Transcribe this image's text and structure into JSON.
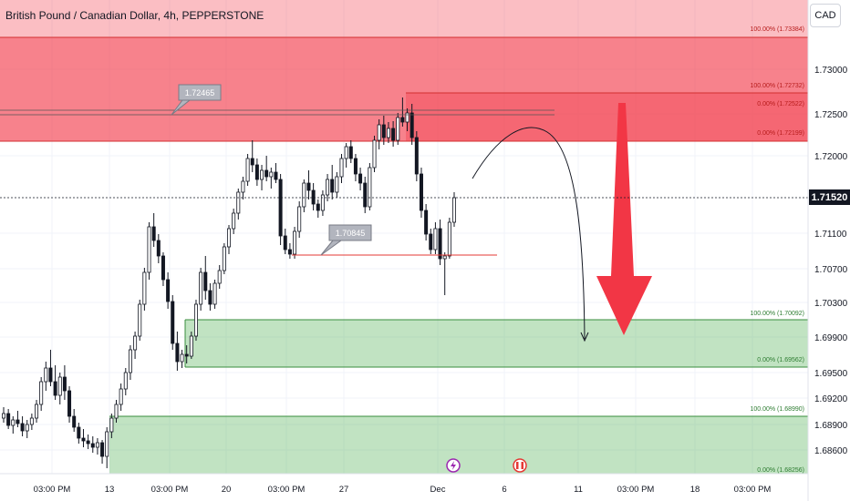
{
  "header": {
    "title": "British Pound / Canadian Dollar, 4h, PEPPERSTONE",
    "currency": "CAD"
  },
  "colors": {
    "up": "#ffffff",
    "down": "#131722",
    "supply_zone": "#f23645",
    "demand_zone": "#4caf50",
    "arrow": "#f23645"
  },
  "chart_data": {
    "type": "candlestick",
    "symbol": "GBPCAD",
    "timeframe": "4h",
    "price_axis": {
      "ticks": [
        "1.73000",
        "1.72500",
        "1.72000",
        "1.71100",
        "1.70700",
        "1.70300",
        "1.69900",
        "1.69500",
        "1.69200",
        "1.68900",
        "1.68600"
      ],
      "last_price": "1.71520"
    },
    "time_axis": {
      "ticks": [
        "03:00 PM",
        "13",
        "03:00 PM",
        "20",
        "03:00 PM",
        "27",
        "Dec",
        "6",
        "11",
        "03:00 PM",
        "18",
        "03:00 PM"
      ]
    },
    "zones": [
      {
        "name": "supply-upper",
        "top_label": "100.00% (1.73384)",
        "top": 1.73384,
        "bottom": 1.72732
      },
      {
        "name": "supply-lower",
        "top_label": "100.00% (1.72732)",
        "mid_label": "0.00% (1.72522)",
        "bottom_label": "0.00% (1.72199)",
        "top": 1.72732,
        "bottom": 1.72199
      },
      {
        "name": "demand-upper",
        "top_label": "100.00% (1.70092)",
        "bottom_label": "0.00% (1.69562)",
        "top": 1.70092,
        "bottom": 1.69562
      },
      {
        "name": "demand-lower",
        "top_label": "100.00% (1.68990)",
        "bottom_label": "0.00% (1.68256)",
        "top": 1.6899,
        "bottom": 1.68256
      }
    ],
    "callouts": [
      {
        "name": "high-callout",
        "label": "1.72465",
        "price": 1.72465
      },
      {
        "name": "low-callout",
        "label": "1.70845",
        "price": 1.70845
      }
    ],
    "event_icons": [
      "lightning-icon",
      "canada-flag-icon"
    ],
    "candles": [
      [
        1.691,
        1.6922,
        1.6905,
        1.6915
      ],
      [
        1.6915,
        1.692,
        1.6898,
        1.6902
      ],
      [
        1.6902,
        1.6912,
        1.6893,
        1.6908
      ],
      [
        1.6908,
        1.6918,
        1.69,
        1.6904
      ],
      [
        1.6904,
        1.6912,
        1.689,
        1.6896
      ],
      [
        1.6896,
        1.6908,
        1.6888,
        1.6903
      ],
      [
        1.6903,
        1.6915,
        1.6897,
        1.691
      ],
      [
        1.691,
        1.693,
        1.6905,
        1.6925
      ],
      [
        1.6925,
        1.6955,
        1.6918,
        1.695
      ],
      [
        1.695,
        1.6972,
        1.694,
        1.6965
      ],
      [
        1.6965,
        1.6985,
        1.6945,
        1.695
      ],
      [
        1.695,
        1.6968,
        1.693,
        1.6935
      ],
      [
        1.6935,
        1.696,
        1.6925,
        1.6955
      ],
      [
        1.6955,
        1.6968,
        1.693,
        1.694
      ],
      [
        1.694,
        1.6945,
        1.6905,
        1.6912
      ],
      [
        1.6912,
        1.692,
        1.6895,
        1.69
      ],
      [
        1.69,
        1.6905,
        1.6882,
        1.6888
      ],
      [
        1.6888,
        1.6898,
        1.6878,
        1.6885
      ],
      [
        1.6885,
        1.6892,
        1.6876,
        1.6882
      ],
      [
        1.6882,
        1.689,
        1.6872,
        1.6878
      ],
      [
        1.6878,
        1.6888,
        1.687,
        1.6883
      ],
      [
        1.6883,
        1.6886,
        1.686,
        1.6868
      ],
      [
        1.6868,
        1.69,
        1.6855,
        1.6895
      ],
      [
        1.6895,
        1.6915,
        1.6888,
        1.691
      ],
      [
        1.691,
        1.693,
        1.6905,
        1.6925
      ],
      [
        1.6925,
        1.6948,
        1.6918,
        1.6942
      ],
      [
        1.6942,
        1.6965,
        1.6935,
        1.696
      ],
      [
        1.696,
        1.699,
        1.6952,
        1.6985
      ],
      [
        1.6985,
        1.7005,
        1.6975,
        1.7
      ],
      [
        1.7,
        1.704,
        1.6995,
        1.7035
      ],
      [
        1.7035,
        1.7075,
        1.7028,
        1.707
      ],
      [
        1.707,
        1.7125,
        1.7062,
        1.712
      ],
      [
        1.712,
        1.7135,
        1.7098,
        1.7105
      ],
      [
        1.7105,
        1.7112,
        1.708,
        1.7088
      ],
      [
        1.7088,
        1.7092,
        1.7055,
        1.7062
      ],
      [
        1.7062,
        1.707,
        1.703,
        1.7038
      ],
      [
        1.7038,
        1.7045,
        1.6985,
        1.6992
      ],
      [
        1.6992,
        1.7005,
        1.6962,
        1.6972
      ],
      [
        1.6972,
        1.6985,
        1.6965,
        1.698
      ],
      [
        1.698,
        1.699,
        1.697,
        1.6978
      ],
      [
        1.6978,
        1.7005,
        1.6975,
        1.7
      ],
      [
        1.7,
        1.704,
        1.6995,
        1.7035
      ],
      [
        1.7035,
        1.7075,
        1.7028,
        1.707
      ],
      [
        1.707,
        1.7088,
        1.704,
        1.705
      ],
      [
        1.705,
        1.7058,
        1.7028,
        1.7035
      ],
      [
        1.7035,
        1.7062,
        1.703,
        1.7058
      ],
      [
        1.7058,
        1.7078,
        1.7052,
        1.7072
      ],
      [
        1.7072,
        1.7102,
        1.7068,
        1.7098
      ],
      [
        1.7098,
        1.7122,
        1.709,
        1.7118
      ],
      [
        1.7118,
        1.714,
        1.7112,
        1.7135
      ],
      [
        1.7135,
        1.7162,
        1.7128,
        1.7158
      ],
      [
        1.7158,
        1.7175,
        1.715,
        1.717
      ],
      [
        1.717,
        1.72,
        1.7165,
        1.7195
      ],
      [
        1.7195,
        1.7215,
        1.718,
        1.7188
      ],
      [
        1.7188,
        1.7195,
        1.7165,
        1.7172
      ],
      [
        1.7172,
        1.7188,
        1.716,
        1.7182
      ],
      [
        1.7182,
        1.7198,
        1.717,
        1.7175
      ],
      [
        1.7175,
        1.7185,
        1.7162,
        1.718
      ],
      [
        1.718,
        1.719,
        1.7168,
        1.7172
      ],
      [
        1.7172,
        1.7178,
        1.71,
        1.711
      ],
      [
        1.711,
        1.7118,
        1.709,
        1.7095
      ],
      [
        1.7095,
        1.7102,
        1.7085,
        1.709
      ],
      [
        1.709,
        1.712,
        1.7085,
        1.7115
      ],
      [
        1.7115,
        1.7148,
        1.7108,
        1.7142
      ],
      [
        1.7142,
        1.7172,
        1.7136,
        1.7168
      ],
      [
        1.7168,
        1.7182,
        1.715,
        1.716
      ],
      [
        1.716,
        1.7168,
        1.7138,
        1.7145
      ],
      [
        1.7145,
        1.715,
        1.713,
        1.7138
      ],
      [
        1.7138,
        1.716,
        1.7132,
        1.7155
      ],
      [
        1.7155,
        1.7178,
        1.7148,
        1.7172
      ],
      [
        1.7172,
        1.7188,
        1.715,
        1.7158
      ],
      [
        1.7158,
        1.718,
        1.7152,
        1.7175
      ],
      [
        1.7175,
        1.72,
        1.7168,
        1.7195
      ],
      [
        1.7195,
        1.7212,
        1.7185,
        1.7208
      ],
      [
        1.7208,
        1.7215,
        1.719,
        1.7195
      ],
      [
        1.7195,
        1.72,
        1.717,
        1.7178
      ],
      [
        1.7178,
        1.7185,
        1.716,
        1.7168
      ],
      [
        1.7168,
        1.7175,
        1.7135,
        1.7142
      ],
      [
        1.7142,
        1.719,
        1.7138,
        1.7185
      ],
      [
        1.7185,
        1.722,
        1.718,
        1.7215
      ],
      [
        1.7215,
        1.7238,
        1.7205,
        1.7232
      ],
      [
        1.7232,
        1.7242,
        1.721,
        1.7218
      ],
      [
        1.7218,
        1.7235,
        1.7212,
        1.7228
      ],
      [
        1.7228,
        1.7236,
        1.7208,
        1.7215
      ],
      [
        1.7215,
        1.7245,
        1.721,
        1.724
      ],
      [
        1.724,
        1.7262,
        1.723,
        1.7235
      ],
      [
        1.7235,
        1.725,
        1.7225,
        1.7245
      ],
      [
        1.7245,
        1.7255,
        1.721,
        1.7218
      ],
      [
        1.7218,
        1.7225,
        1.717,
        1.7178
      ],
      [
        1.7178,
        1.7185,
        1.713,
        1.7138
      ],
      [
        1.7138,
        1.7145,
        1.7105,
        1.7112
      ],
      [
        1.7112,
        1.7118,
        1.709,
        1.7095
      ],
      [
        1.7095,
        1.7125,
        1.709,
        1.7118
      ],
      [
        1.7118,
        1.7128,
        1.7078,
        1.7085
      ],
      [
        1.7085,
        1.7092,
        1.7045,
        1.7088
      ],
      [
        1.7088,
        1.713,
        1.7085,
        1.7125
      ],
      [
        1.7125,
        1.7158,
        1.712,
        1.7152
      ]
    ]
  }
}
